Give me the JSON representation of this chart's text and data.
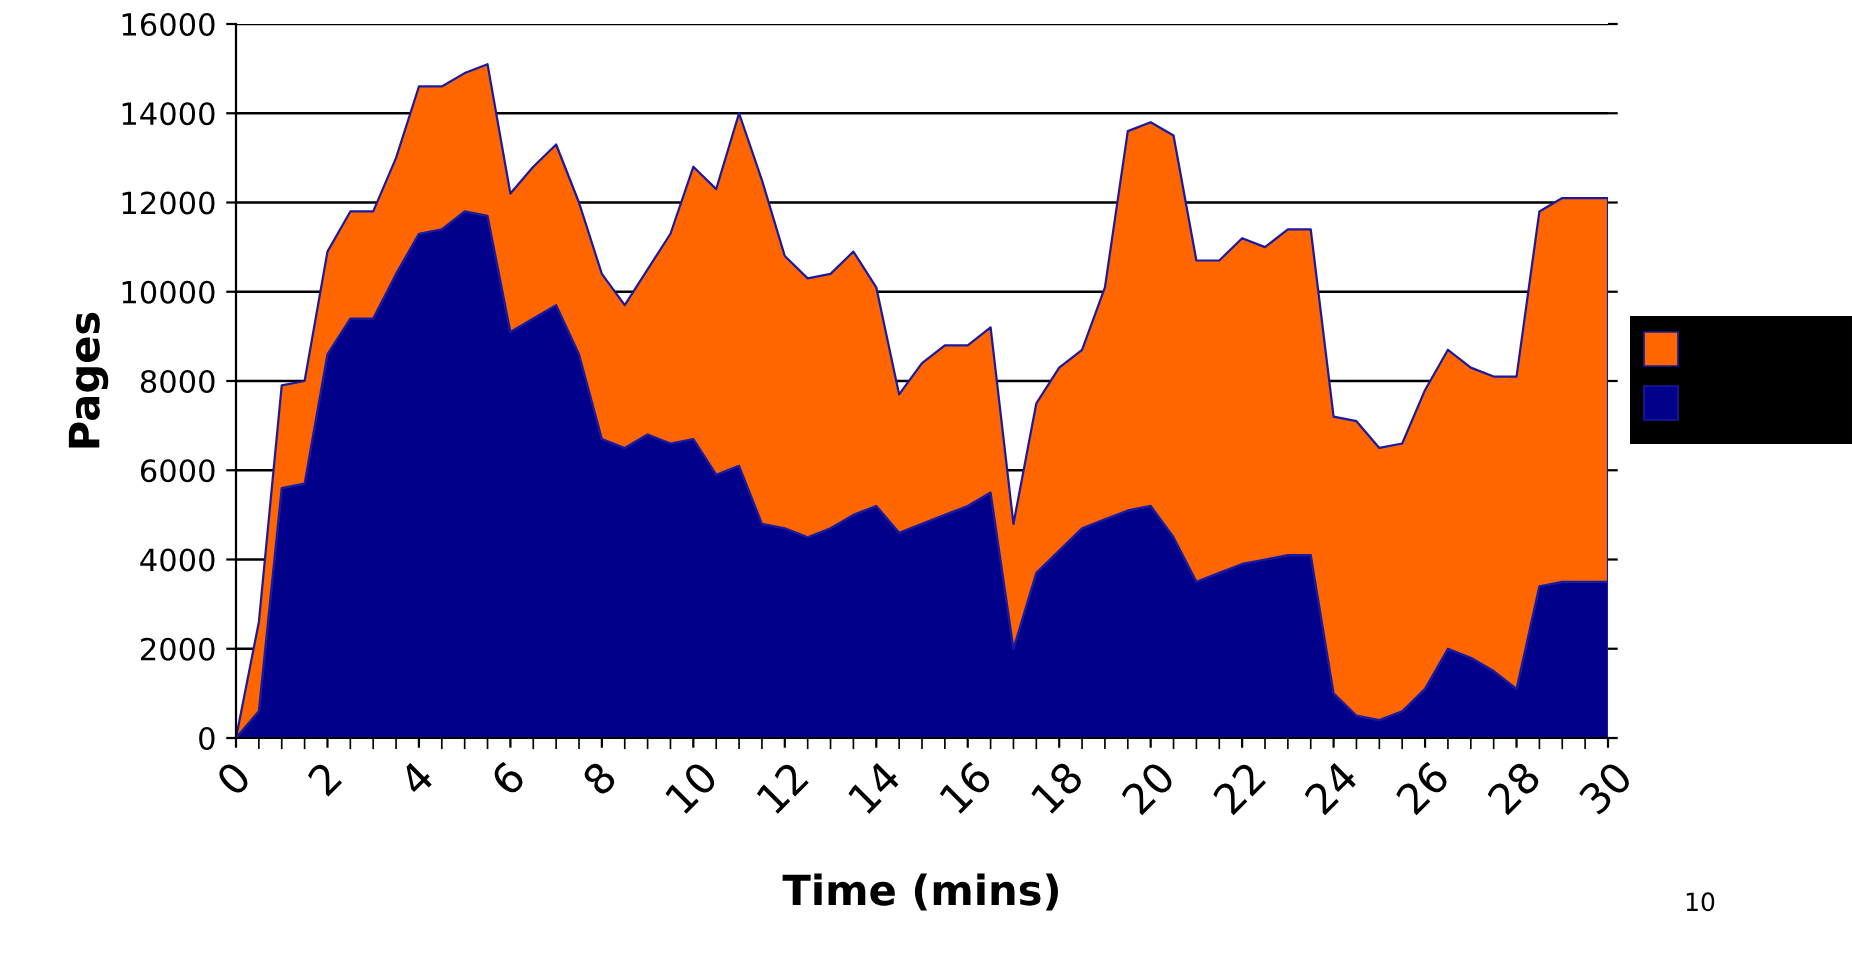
{
  "chart_data": {
    "type": "area",
    "stacked": true,
    "xlabel": "Time (mins)",
    "ylabel": "Pages",
    "x": [
      0,
      0.5,
      1,
      1.5,
      2,
      2.5,
      3,
      3.5,
      4,
      4.5,
      5,
      5.5,
      6,
      6.5,
      7,
      7.5,
      8,
      8.5,
      9,
      9.5,
      10,
      10.5,
      11,
      11.5,
      12,
      12.5,
      13,
      13.5,
      14,
      14.5,
      15,
      15.5,
      16,
      16.5,
      17,
      17.5,
      18,
      18.5,
      19,
      19.5,
      20,
      20.5,
      21,
      21.5,
      22,
      22.5,
      23,
      23.5,
      24,
      24.5,
      25,
      25.5,
      26,
      26.5,
      27,
      27.5,
      28,
      28.5,
      29,
      29.5,
      30
    ],
    "series": [
      {
        "color": "#00008b",
        "values": [
          0,
          600,
          5600,
          5700,
          8600,
          9400,
          9400,
          10400,
          11300,
          11400,
          11800,
          11700,
          9100,
          9400,
          9700,
          8600,
          6700,
          6500,
          6800,
          6600,
          6700,
          5900,
          6100,
          4800,
          4700,
          4500,
          4700,
          5000,
          5200,
          4600,
          4800,
          5000,
          5200,
          5500,
          2000,
          3700,
          4200,
          4700,
          4900,
          5100,
          5200,
          4500,
          3500,
          3700,
          3900,
          4000,
          4100,
          4100,
          1000,
          500,
          400,
          600,
          1100,
          2000,
          1800,
          1500,
          1100,
          3400,
          3500,
          3500,
          3500
        ]
      },
      {
        "color": "#ff6600",
        "values": [
          0,
          2000,
          2300,
          2300,
          2300,
          2400,
          2400,
          2600,
          3300,
          3200,
          3100,
          3400,
          3100,
          3400,
          3600,
          3400,
          3700,
          3200,
          3700,
          4700,
          6100,
          6400,
          7900,
          7700,
          6100,
          5800,
          5700,
          5900,
          4900,
          3100,
          3600,
          3800,
          3600,
          3700,
          2800,
          3800,
          4100,
          4000,
          5200,
          8500,
          8600,
          9000,
          7200,
          7000,
          7300,
          7000,
          7300,
          7300,
          6200,
          6600,
          6100,
          6000,
          6700,
          6700,
          6500,
          6600,
          7000,
          8400,
          8600,
          8600,
          8600
        ]
      }
    ],
    "xlim": [
      0,
      30
    ],
    "xticks": [
      0,
      2,
      4,
      6,
      8,
      10,
      12,
      14,
      16,
      18,
      20,
      22,
      24,
      26,
      28,
      30
    ],
    "ylim": [
      0,
      16000
    ],
    "yticks": [
      0,
      2000,
      4000,
      6000,
      8000,
      10000,
      12000,
      14000,
      16000
    ],
    "grid": "y",
    "annotations": [
      "10"
    ]
  }
}
